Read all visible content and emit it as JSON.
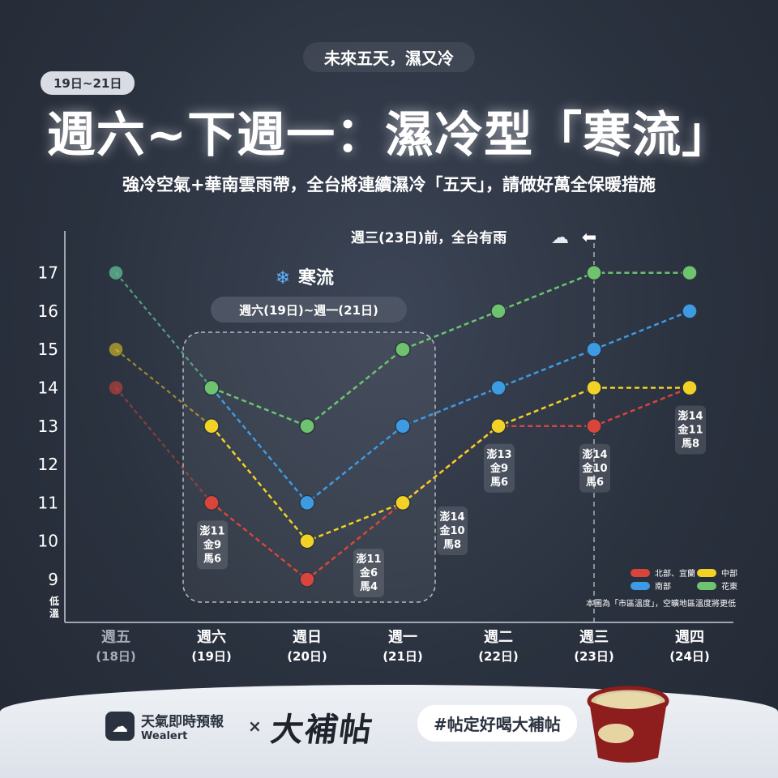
{
  "header": {
    "tag": "未來五天，濕又冷",
    "date_badge": "19日~21日",
    "title": "週六~下週一：濕冷型「寒流」",
    "subtitle": "強冷空氣+華南雲雨帶，全台將連續濕冷「五天」，請做好萬全保暖措施"
  },
  "chart_data": {
    "type": "line",
    "categories": [
      "週五",
      "週六",
      "週日",
      "週一",
      "週二",
      "週三",
      "週四"
    ],
    "category_dates": [
      "(18日)",
      "(19日)",
      "(20日)",
      "(21日)",
      "(22日)",
      "(23日)",
      "(24日)"
    ],
    "ylim": [
      9,
      17
    ],
    "yticks": [
      9,
      10,
      11,
      12,
      13,
      14,
      15,
      16,
      17
    ],
    "ylabel": "低溫",
    "series": [
      {
        "name": "北部、宜蘭",
        "color": "#d9453b",
        "values": [
          14,
          11,
          9,
          11,
          13,
          13,
          14
        ]
      },
      {
        "name": "中部",
        "color": "#f2d224",
        "values": [
          15,
          13,
          10,
          11,
          13,
          14,
          14
        ]
      },
      {
        "name": "南部",
        "color": "#3d9be3",
        "values": [
          17,
          14,
          11,
          13,
          14,
          15,
          16
        ]
      },
      {
        "name": "花東",
        "color": "#6ec46e",
        "values": [
          17,
          14,
          13,
          15,
          16,
          17,
          17
        ]
      }
    ],
    "island_annotations": [
      {
        "index": 1,
        "lines": [
          "澎11",
          "金9",
          "馬6"
        ]
      },
      {
        "index": 2,
        "lines": [
          "澎11",
          "金6",
          "馬4"
        ]
      },
      {
        "index": 3,
        "lines": [
          "澎14",
          "金10",
          "馬8"
        ]
      },
      {
        "index": 4,
        "lines": [
          "澎13",
          "金9",
          "馬6"
        ]
      },
      {
        "index": 5,
        "lines": [
          "澎14",
          "金10",
          "馬6"
        ]
      },
      {
        "index": 6,
        "lines": [
          "澎14",
          "金11",
          "馬8"
        ]
      }
    ],
    "cold_wave_label": "寒流",
    "cold_wave_range": "週六(19日)~週一(21日)",
    "rain_note": "週三(23日)前，全台有雨",
    "footnote": "本圖為「市區溫度」，空曠地區溫度將更低",
    "legend_position": "bottom-right"
  },
  "footer": {
    "weather_brand": "天氣即時預報",
    "weather_brand_en": "Wealert",
    "times": "×",
    "logo": "大補帖",
    "hashtag": "#帖定好喝大補帖"
  }
}
